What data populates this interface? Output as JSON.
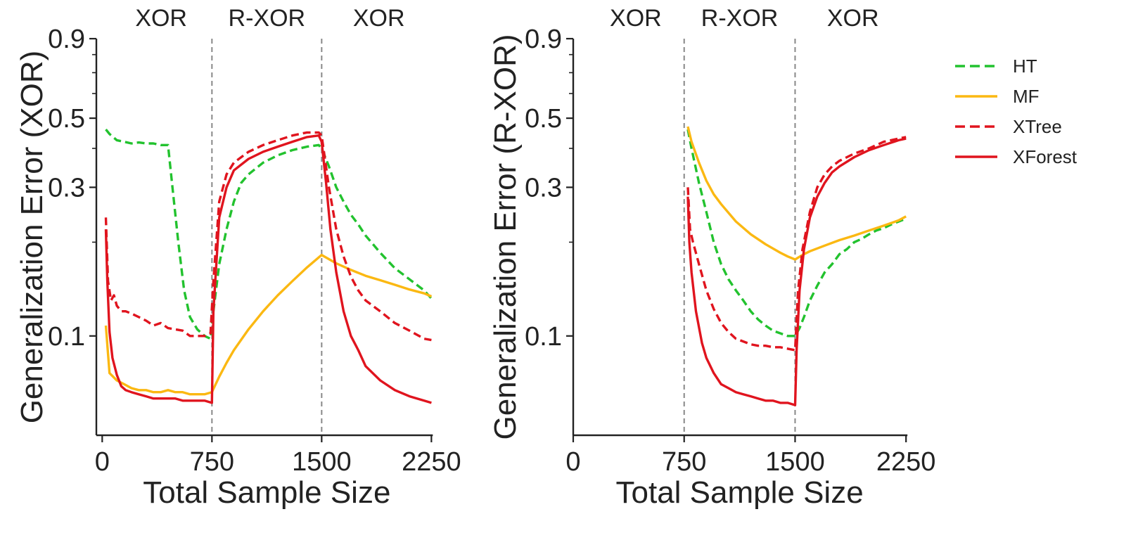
{
  "chart_data": [
    {
      "type": "line",
      "yscale": "log",
      "xlabel": "Total Sample Size",
      "ylabel": "Generalization Error (XOR)",
      "xlim": [
        -40,
        2330
      ],
      "ylim": [
        0.048,
        0.9
      ],
      "xticks": [
        0,
        750,
        1500,
        2250
      ],
      "xtick_labels": [
        "0",
        "750",
        "1500",
        "2250"
      ],
      "yticks": [
        0.1,
        0.3,
        0.5,
        0.9
      ],
      "ytick_labels": [
        "0.1",
        "0.3",
        "0.5",
        "0.9"
      ],
      "minor_yticks": [
        0.2,
        0.4,
        0.6,
        0.7,
        0.8
      ],
      "vlines": [
        750,
        1500
      ],
      "phases": [
        "XOR",
        "R-XOR",
        "XOR"
      ],
      "series": [
        {
          "name": "HT",
          "color": "#22c22e",
          "style": "dashed",
          "x": [
            25,
            50,
            100,
            150,
            200,
            250,
            300,
            350,
            400,
            450,
            480,
            520,
            560,
            600,
            650,
            700,
            740,
            760,
            800,
            850,
            900,
            950,
            1000,
            1100,
            1200,
            1300,
            1400,
            1480,
            1500,
            1550,
            1600,
            1650,
            1700,
            1750,
            1800,
            1900,
            2000,
            2100,
            2200,
            2250
          ],
          "y": [
            0.46,
            0.445,
            0.425,
            0.42,
            0.415,
            0.418,
            0.415,
            0.415,
            0.41,
            0.41,
            0.3,
            0.2,
            0.14,
            0.115,
            0.105,
            0.1,
            0.098,
            0.12,
            0.17,
            0.22,
            0.27,
            0.31,
            0.33,
            0.36,
            0.38,
            0.395,
            0.405,
            0.41,
            0.4,
            0.35,
            0.3,
            0.27,
            0.245,
            0.228,
            0.21,
            0.185,
            0.165,
            0.152,
            0.14,
            0.132
          ]
        },
        {
          "name": "MF",
          "color": "#fbb812",
          "style": "solid",
          "x": [
            25,
            50,
            100,
            150,
            200,
            250,
            300,
            350,
            400,
            450,
            500,
            550,
            600,
            650,
            700,
            750,
            800,
            850,
            900,
            1000,
            1100,
            1200,
            1300,
            1400,
            1500,
            1600,
            1700,
            1800,
            1900,
            2000,
            2100,
            2200,
            2250
          ],
          "y": [
            0.108,
            0.076,
            0.072,
            0.07,
            0.068,
            0.067,
            0.067,
            0.066,
            0.066,
            0.067,
            0.066,
            0.066,
            0.065,
            0.065,
            0.065,
            0.066,
            0.074,
            0.082,
            0.09,
            0.105,
            0.12,
            0.135,
            0.15,
            0.166,
            0.182,
            0.171,
            0.163,
            0.156,
            0.151,
            0.146,
            0.141,
            0.137,
            0.134
          ]
        },
        {
          "name": "XTree",
          "color": "#e0141e",
          "style": "dashed",
          "x": [
            25,
            40,
            60,
            80,
            100,
            130,
            160,
            200,
            250,
            300,
            350,
            400,
            450,
            500,
            550,
            600,
            650,
            700,
            740,
            760,
            800,
            850,
            900,
            1000,
            1100,
            1200,
            1300,
            1400,
            1480,
            1500,
            1550,
            1600,
            1650,
            1700,
            1750,
            1800,
            1900,
            2000,
            2100,
            2200,
            2250
          ],
          "y": [
            0.24,
            0.15,
            0.13,
            0.135,
            0.125,
            0.12,
            0.12,
            0.118,
            0.115,
            0.112,
            0.108,
            0.11,
            0.106,
            0.105,
            0.104,
            0.1,
            0.1,
            0.1,
            0.102,
            0.15,
            0.27,
            0.33,
            0.36,
            0.39,
            0.41,
            0.425,
            0.44,
            0.45,
            0.45,
            0.44,
            0.3,
            0.22,
            0.18,
            0.155,
            0.14,
            0.13,
            0.12,
            0.11,
            0.104,
            0.098,
            0.097
          ]
        },
        {
          "name": "XForest",
          "color": "#e0141e",
          "style": "solid",
          "x": [
            25,
            35,
            50,
            70,
            100,
            130,
            160,
            200,
            250,
            300,
            350,
            400,
            450,
            500,
            550,
            600,
            650,
            700,
            750,
            760,
            800,
            850,
            900,
            1000,
            1100,
            1200,
            1300,
            1400,
            1480,
            1500,
            1530,
            1560,
            1600,
            1650,
            1700,
            1750,
            1800,
            1900,
            2000,
            2100,
            2200,
            2250
          ],
          "y": [
            0.22,
            0.15,
            0.103,
            0.085,
            0.075,
            0.069,
            0.067,
            0.066,
            0.065,
            0.064,
            0.063,
            0.063,
            0.063,
            0.063,
            0.062,
            0.062,
            0.062,
            0.062,
            0.061,
            0.12,
            0.24,
            0.3,
            0.34,
            0.37,
            0.39,
            0.405,
            0.42,
            0.435,
            0.44,
            0.42,
            0.31,
            0.22,
            0.16,
            0.12,
            0.1,
            0.09,
            0.08,
            0.072,
            0.067,
            0.064,
            0.062,
            0.061
          ]
        }
      ]
    },
    {
      "type": "line",
      "yscale": "log",
      "xlabel": "Total Sample Size",
      "ylabel": "Generalization Error (R-XOR)",
      "xlim": [
        0,
        2330
      ],
      "ylim": [
        0.048,
        0.9
      ],
      "xticks": [
        0,
        750,
        1500,
        2250
      ],
      "xtick_labels": [
        "0",
        "750",
        "1500",
        "2250"
      ],
      "yticks": [
        0.1,
        0.3,
        0.5,
        0.9
      ],
      "ytick_labels": [
        "0.1",
        "0.3",
        "0.5",
        "0.9"
      ],
      "minor_yticks": [
        0.2,
        0.4,
        0.6,
        0.7,
        0.8
      ],
      "vlines": [
        750,
        1500
      ],
      "phases": [
        "XOR",
        "R-XOR",
        "XOR"
      ],
      "series": [
        {
          "name": "HT",
          "color": "#22c22e",
          "style": "dashed",
          "x": [
            775,
            800,
            850,
            900,
            950,
            1000,
            1050,
            1100,
            1150,
            1200,
            1250,
            1300,
            1350,
            1400,
            1450,
            1500,
            1530,
            1560,
            1600,
            1650,
            1700,
            1750,
            1800,
            1850,
            1900,
            1950,
            2000,
            2050,
            2100,
            2150,
            2200,
            2250
          ],
          "y": [
            0.46,
            0.4,
            0.31,
            0.25,
            0.2,
            0.17,
            0.152,
            0.14,
            0.13,
            0.12,
            0.113,
            0.108,
            0.104,
            0.102,
            0.1,
            0.1,
            0.106,
            0.115,
            0.13,
            0.145,
            0.16,
            0.17,
            0.183,
            0.19,
            0.2,
            0.205,
            0.212,
            0.218,
            0.222,
            0.228,
            0.233,
            0.238
          ]
        },
        {
          "name": "MF",
          "color": "#fbb812",
          "style": "solid",
          "x": [
            775,
            800,
            850,
            900,
            950,
            1000,
            1100,
            1200,
            1300,
            1400,
            1450,
            1500,
            1550,
            1600,
            1700,
            1800,
            1900,
            2000,
            2100,
            2200,
            2250
          ],
          "y": [
            0.47,
            0.42,
            0.36,
            0.315,
            0.285,
            0.265,
            0.233,
            0.212,
            0.197,
            0.185,
            0.18,
            0.176,
            0.182,
            0.187,
            0.195,
            0.203,
            0.21,
            0.218,
            0.226,
            0.235,
            0.242
          ]
        },
        {
          "name": "XTree",
          "color": "#e0141e",
          "style": "dashed",
          "x": [
            775,
            790,
            810,
            850,
            900,
            950,
            1000,
            1050,
            1100,
            1150,
            1200,
            1250,
            1300,
            1350,
            1400,
            1450,
            1500,
            1520,
            1550,
            1600,
            1650,
            1700,
            1750,
            1800,
            1900,
            2000,
            2100,
            2200,
            2250
          ],
          "y": [
            0.3,
            0.22,
            0.2,
            0.17,
            0.14,
            0.122,
            0.11,
            0.103,
            0.098,
            0.096,
            0.094,
            0.093,
            0.093,
            0.092,
            0.092,
            0.091,
            0.09,
            0.14,
            0.19,
            0.25,
            0.3,
            0.33,
            0.35,
            0.365,
            0.385,
            0.4,
            0.42,
            0.43,
            0.435
          ]
        },
        {
          "name": "XForest",
          "color": "#e0141e",
          "style": "solid",
          "x": [
            775,
            785,
            800,
            830,
            870,
            900,
            950,
            1000,
            1050,
            1100,
            1150,
            1200,
            1250,
            1300,
            1350,
            1400,
            1450,
            1500,
            1510,
            1530,
            1560,
            1600,
            1650,
            1700,
            1750,
            1800,
            1900,
            2000,
            2100,
            2200,
            2250
          ],
          "y": [
            0.28,
            0.2,
            0.16,
            0.12,
            0.095,
            0.085,
            0.076,
            0.07,
            0.068,
            0.066,
            0.065,
            0.064,
            0.063,
            0.062,
            0.062,
            0.061,
            0.061,
            0.06,
            0.09,
            0.14,
            0.19,
            0.24,
            0.28,
            0.31,
            0.335,
            0.35,
            0.375,
            0.395,
            0.41,
            0.425,
            0.43
          ]
        }
      ]
    }
  ],
  "legend": {
    "position": "right",
    "items": [
      {
        "label": "HT",
        "color": "#22c22e",
        "style": "dashed"
      },
      {
        "label": "MF",
        "color": "#fbb812",
        "style": "solid"
      },
      {
        "label": "XTree",
        "color": "#e0141e",
        "style": "dashed"
      },
      {
        "label": "XForest",
        "color": "#e0141e",
        "style": "solid"
      }
    ]
  }
}
